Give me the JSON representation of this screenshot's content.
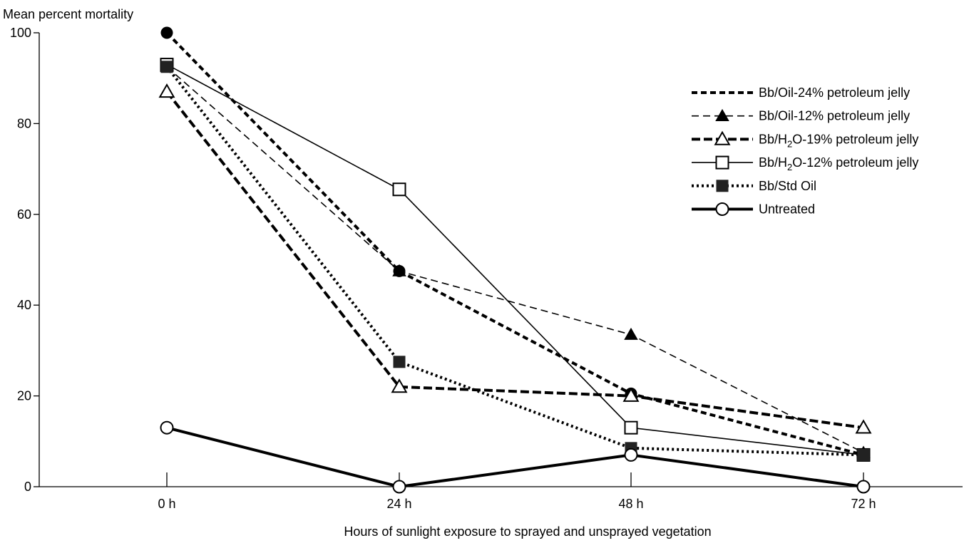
{
  "chart_data": {
    "type": "line",
    "ylabel": "Mean percent mortality",
    "xlabel": "Hours of sunlight exposure to sprayed and unsprayed vegetation",
    "categories": [
      "0 h",
      "24 h",
      "48 h",
      "72 h"
    ],
    "yticks": [
      "0",
      "20",
      "40",
      "60",
      "80",
      "100"
    ],
    "ylim": [
      0,
      100
    ],
    "grid": false,
    "legend_position": "top-right",
    "series": [
      {
        "name": "Bb/Oil-24% petroleum jelly",
        "marker": "filled-circle",
        "line": "short-dash",
        "values": [
          100,
          47.5,
          20.5,
          7
        ]
      },
      {
        "name": "Bb/Oil-12% petroleum jelly",
        "marker": "filled-triangle",
        "line": "thin-dash",
        "values": [
          92.5,
          47.5,
          33.5,
          7.5
        ]
      },
      {
        "name_parts": [
          "Bb/H",
          "2",
          "O-19% petroleum jelly"
        ],
        "marker": "open-triangle",
        "line": "heavy-dash",
        "values": [
          87,
          22,
          20,
          13
        ]
      },
      {
        "name_parts": [
          "Bb/H",
          "2",
          "O-12% petroleum jelly"
        ],
        "marker": "open-square",
        "line": "solid",
        "values": [
          93,
          65.5,
          13,
          7
        ]
      },
      {
        "name": "Bb/Std Oil",
        "marker": "filled-square",
        "line": "dotted",
        "values": [
          92.5,
          27.5,
          8.5,
          7
        ]
      },
      {
        "name": "Untreated",
        "marker": "open-circle",
        "line": "heavy-solid",
        "values": [
          13,
          0,
          7,
          0
        ]
      }
    ]
  }
}
